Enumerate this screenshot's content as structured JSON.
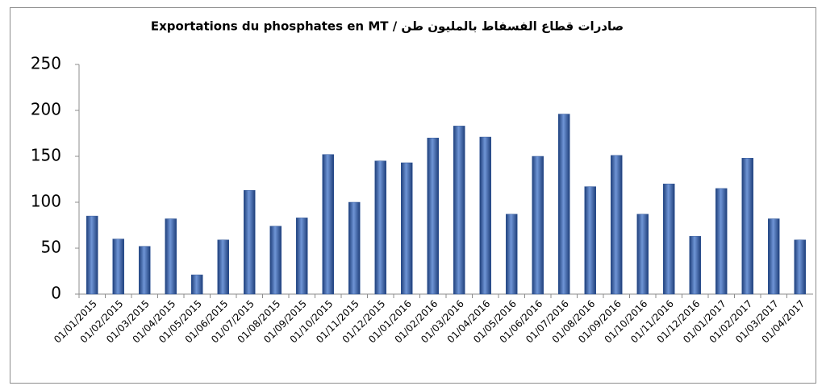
{
  "chart_data": {
    "type": "bar",
    "title": "Exportations du phosphates en MT  /  صادرات قطاع الفسفاط بالمليون طن",
    "categories": [
      "01/01/2015",
      "01/02/2015",
      "01/03/2015",
      "01/04/2015",
      "01/05/2015",
      "01/06/2015",
      "01/07/2015",
      "01/08/2015",
      "01/09/2015",
      "01/10/2015",
      "01/11/2015",
      "01/12/2015",
      "01/01/2016",
      "01/02/2016",
      "01/03/2016",
      "01/04/2016",
      "01/05/2016",
      "01/06/2016",
      "01/07/2016",
      "01/08/2016",
      "01/09/2016",
      "01/10/2016",
      "01/11/2016",
      "01/12/2016",
      "01/01/2017",
      "01/02/2017",
      "01/03/2017",
      "01/04/2017"
    ],
    "values": [
      85,
      60,
      52,
      82,
      21,
      59,
      113,
      74,
      83,
      152,
      100,
      145,
      143,
      170,
      183,
      171,
      87,
      150,
      196,
      117,
      151,
      87,
      120,
      63,
      115,
      148,
      82,
      59
    ],
    "color": "#2f5597",
    "ylim": [
      0,
      250
    ],
    "yticks": [
      0,
      50,
      100,
      150,
      200,
      250
    ],
    "grid": false
  }
}
